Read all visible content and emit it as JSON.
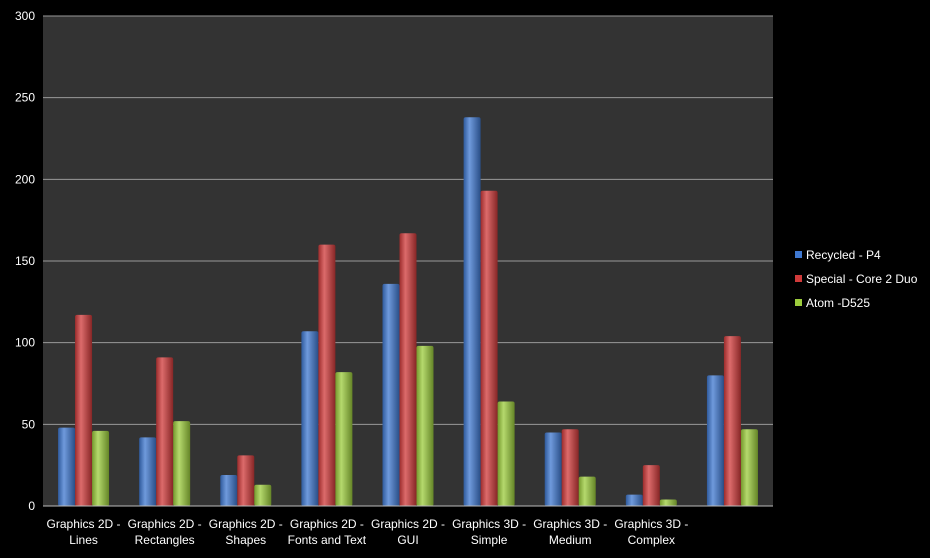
{
  "chart_data": {
    "type": "bar",
    "categories": [
      [
        "Graphics 2D -",
        "Lines"
      ],
      [
        "Graphics 2D -",
        "Rectangles"
      ],
      [
        "Graphics 2D -",
        "Shapes"
      ],
      [
        "Graphics 2D -",
        "Fonts and Text"
      ],
      [
        "Graphics 2D -",
        "GUI"
      ],
      [
        "Graphics 3D -",
        "Simple"
      ],
      [
        "Graphics 3D -",
        "Medium"
      ],
      [
        "Graphics 3D -",
        "Complex"
      ],
      [
        "",
        ""
      ]
    ],
    "series": [
      {
        "name": "Recycled - P4",
        "color": "#3f78d0",
        "values": [
          48,
          42,
          19,
          107,
          136,
          238,
          45,
          7,
          80
        ]
      },
      {
        "name": "Special - Core 2 Duo",
        "color": "#d03a3a",
        "values": [
          117,
          91,
          31,
          160,
          167,
          193,
          47,
          25,
          104
        ]
      },
      {
        "name": "Atom -D525",
        "color": "#9ccc3c",
        "values": [
          46,
          52,
          13,
          82,
          98,
          64,
          18,
          4,
          47
        ]
      }
    ],
    "ylim": [
      0,
      300
    ],
    "yticks": [
      0,
      50,
      100,
      150,
      200,
      250,
      300
    ],
    "grid": true,
    "legend": "right",
    "background": "#333333"
  }
}
